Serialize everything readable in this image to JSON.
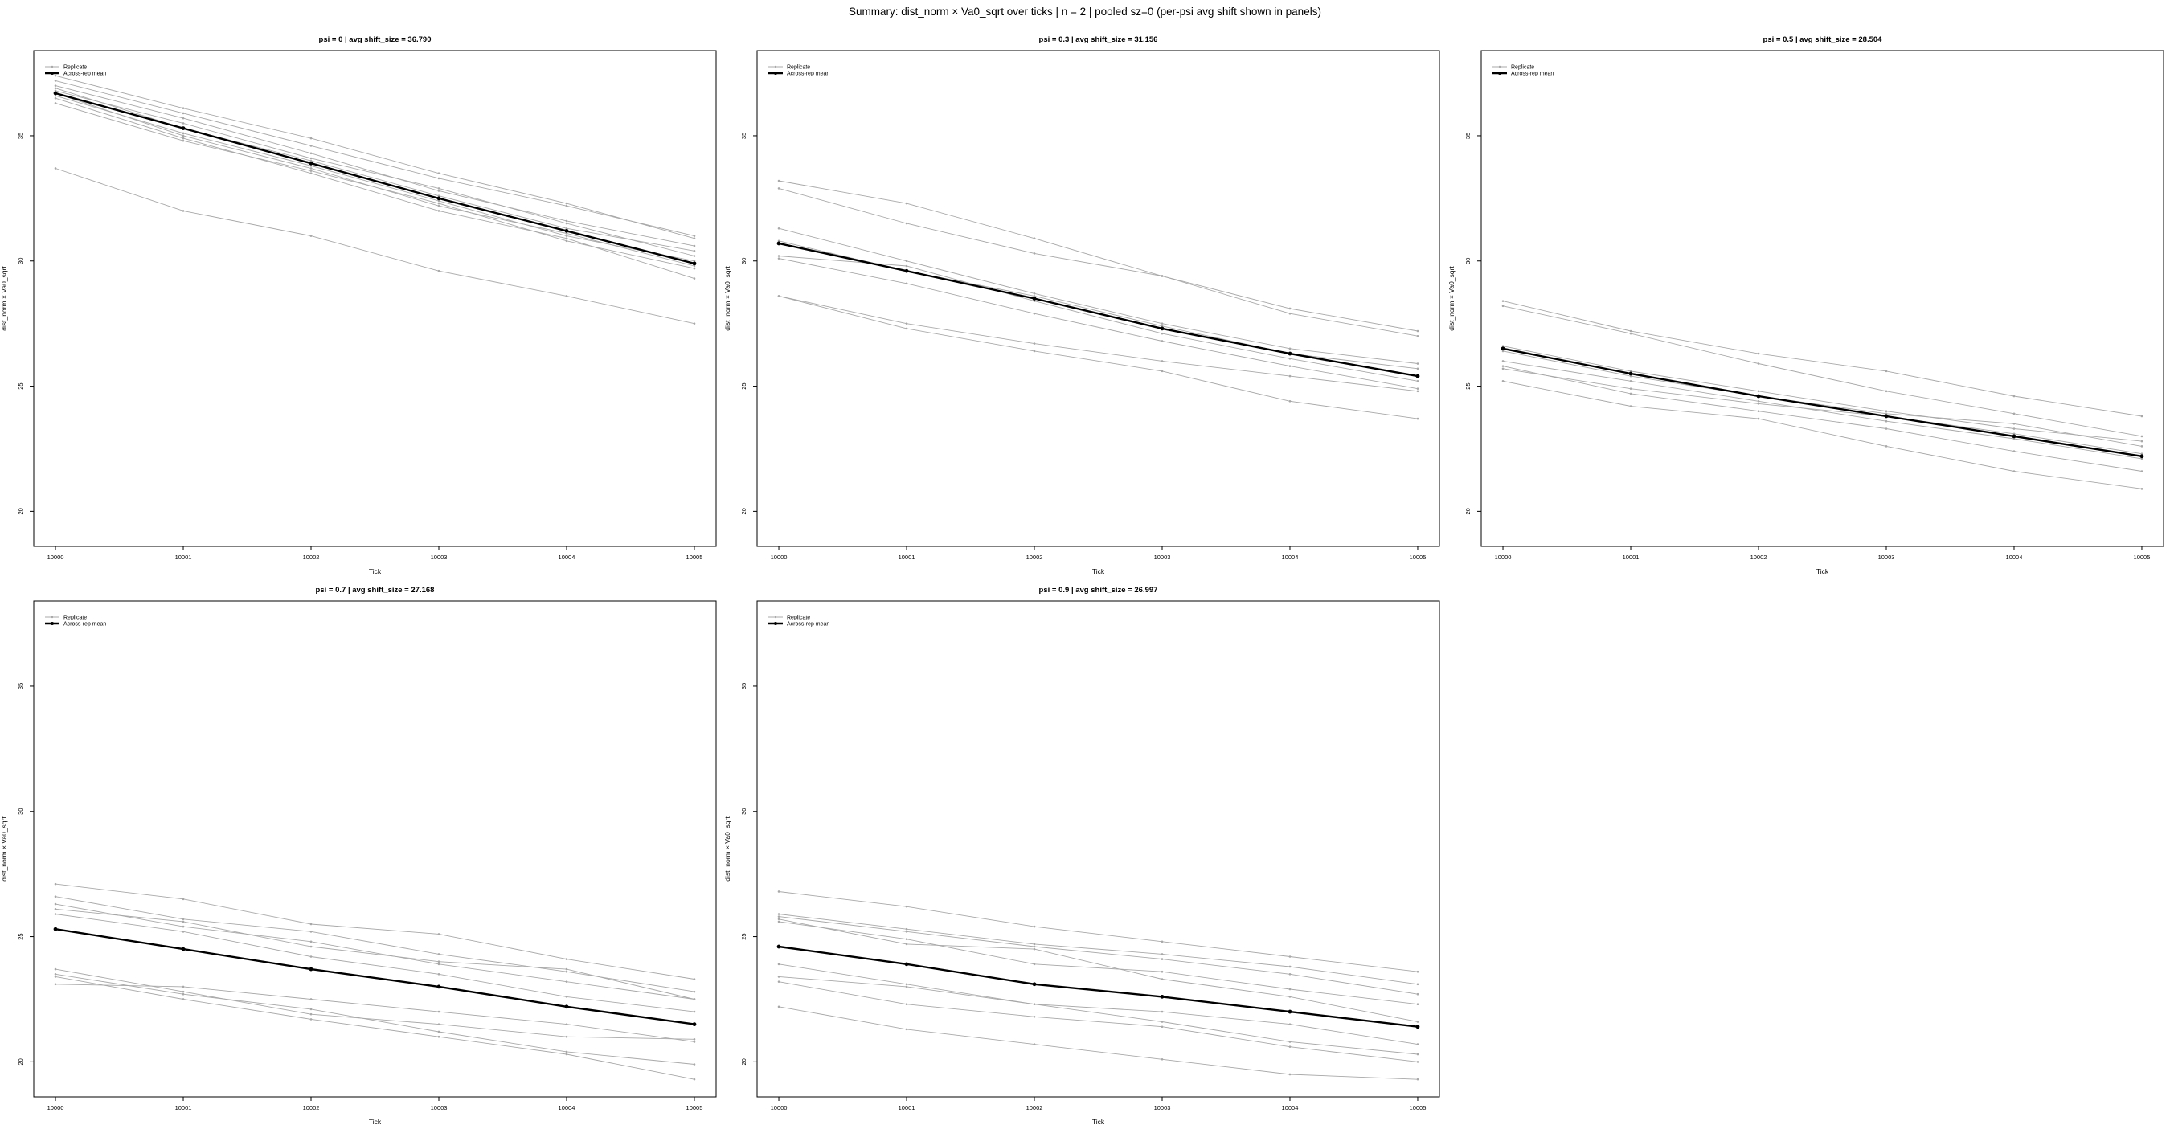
{
  "figure_title": "Summary: dist_norm × Va0_sqrt over ticks | n = 2 | pooled sz=0 (per-psi avg shift shown in panels)",
  "chart_data": [
    {
      "type": "line",
      "title": "psi = 0 | avg shift_size = 36.790",
      "xlabel": "Tick",
      "ylabel": "dist_norm × Va0_sqrt",
      "x": [
        10000,
        10001,
        10002,
        10003,
        10004,
        10005
      ],
      "xlim": [
        9999.83,
        10005.17
      ],
      "ylim": [
        18.6,
        38.4
      ],
      "yticks": [
        20,
        25,
        30,
        35
      ],
      "grid": false,
      "legend": {
        "placement": "top-left",
        "entries": [
          "Replicate",
          "Across-rep mean"
        ]
      },
      "series": [
        {
          "name": "Replicate",
          "values": [
            37.4,
            36.1,
            34.9,
            33.5,
            32.3,
            30.9
          ]
        },
        {
          "name": "Replicate",
          "values": [
            37.2,
            35.9,
            34.6,
            33.3,
            32.2,
            31.0
          ]
        },
        {
          "name": "Replicate",
          "values": [
            37.0,
            35.7,
            34.3,
            32.8,
            31.6,
            30.6
          ]
        },
        {
          "name": "Replicate",
          "values": [
            36.9,
            35.3,
            34.0,
            32.6,
            31.3,
            30.4
          ]
        },
        {
          "name": "Replicate",
          "values": [
            36.8,
            35.5,
            34.1,
            32.9,
            31.5,
            30.2
          ]
        },
        {
          "name": "Replicate",
          "values": [
            36.6,
            35.1,
            33.8,
            32.4,
            31.0,
            30.0
          ]
        },
        {
          "name": "Replicate",
          "values": [
            36.7,
            35.0,
            33.7,
            32.2,
            31.1,
            29.8
          ]
        },
        {
          "name": "Replicate",
          "values": [
            36.3,
            34.8,
            33.6,
            32.3,
            30.8,
            29.7
          ]
        },
        {
          "name": "Replicate",
          "values": [
            36.5,
            34.9,
            33.5,
            32.0,
            30.9,
            29.3
          ]
        },
        {
          "name": "Replicate",
          "values": [
            33.7,
            32.0,
            31.0,
            29.6,
            28.6,
            27.5
          ]
        },
        {
          "name": "Across-rep mean",
          "values": [
            36.7,
            35.3,
            33.9,
            32.5,
            31.2,
            29.9
          ]
        }
      ]
    },
    {
      "type": "line",
      "title": "psi = 0.3 | avg shift_size = 31.156",
      "xlabel": "Tick",
      "ylabel": "dist_norm × Va0_sqrt",
      "x": [
        10000,
        10001,
        10002,
        10003,
        10004,
        10005
      ],
      "xlim": [
        9999.83,
        10005.17
      ],
      "ylim": [
        18.6,
        38.4
      ],
      "yticks": [
        20,
        25,
        30,
        35
      ],
      "grid": false,
      "legend": {
        "placement": "top-left",
        "entries": [
          "Replicate",
          "Across-rep mean"
        ]
      },
      "series": [
        {
          "name": "Replicate",
          "values": [
            33.2,
            32.3,
            30.9,
            29.4,
            28.1,
            27.2
          ]
        },
        {
          "name": "Replicate",
          "values": [
            32.9,
            31.5,
            30.3,
            29.4,
            27.9,
            27.0
          ]
        },
        {
          "name": "Replicate",
          "values": [
            31.3,
            30.0,
            28.7,
            27.5,
            26.5,
            25.9
          ]
        },
        {
          "name": "Replicate",
          "values": [
            30.8,
            29.6,
            28.6,
            27.4,
            26.3,
            25.7
          ]
        },
        {
          "name": "Replicate",
          "values": [
            30.2,
            29.8,
            28.4,
            27.1,
            26.1,
            25.2
          ]
        },
        {
          "name": "Replicate",
          "values": [
            30.1,
            29.1,
            27.9,
            26.8,
            25.8,
            24.9
          ]
        },
        {
          "name": "Replicate",
          "values": [
            28.6,
            27.5,
            26.7,
            26.0,
            25.4,
            24.8
          ]
        },
        {
          "name": "Replicate",
          "values": [
            28.6,
            27.3,
            26.4,
            25.6,
            24.4,
            23.7
          ]
        },
        {
          "name": "Across-rep mean",
          "values": [
            30.7,
            29.6,
            28.5,
            27.3,
            26.3,
            25.4
          ]
        }
      ]
    },
    {
      "type": "line",
      "title": "psi = 0.5 | avg shift_size = 28.504",
      "xlabel": "Tick",
      "ylabel": "dist_norm × Va0_sqrt",
      "x": [
        10000,
        10001,
        10002,
        10003,
        10004,
        10005
      ],
      "xlim": [
        9999.83,
        10005.17
      ],
      "ylim": [
        18.6,
        38.4
      ],
      "yticks": [
        20,
        25,
        30,
        35
      ],
      "grid": false,
      "legend": {
        "placement": "top-left",
        "entries": [
          "Replicate",
          "Across-rep mean"
        ]
      },
      "series": [
        {
          "name": "Replicate",
          "values": [
            28.4,
            27.2,
            26.3,
            25.6,
            24.6,
            23.8
          ]
        },
        {
          "name": "Replicate",
          "values": [
            28.2,
            27.1,
            25.9,
            24.8,
            23.9,
            23.0
          ]
        },
        {
          "name": "Replicate",
          "values": [
            26.6,
            25.6,
            24.8,
            24.0,
            23.3,
            22.8
          ]
        },
        {
          "name": "Replicate",
          "values": [
            26.4,
            25.4,
            24.6,
            23.9,
            23.5,
            22.6
          ]
        },
        {
          "name": "Replicate",
          "values": [
            26.0,
            25.2,
            24.4,
            23.6,
            22.9,
            22.1
          ]
        },
        {
          "name": "Replicate",
          "values": [
            25.7,
            24.9,
            24.3,
            23.8,
            23.1,
            22.3
          ]
        },
        {
          "name": "Replicate",
          "values": [
            25.8,
            24.7,
            24.0,
            23.3,
            22.4,
            21.6
          ]
        },
        {
          "name": "Replicate",
          "values": [
            25.2,
            24.2,
            23.7,
            22.6,
            21.6,
            20.9
          ]
        },
        {
          "name": "Across-rep mean",
          "values": [
            26.5,
            25.5,
            24.6,
            23.8,
            23.0,
            22.2
          ]
        }
      ]
    },
    {
      "type": "line",
      "title": "psi = 0.7 | avg shift_size = 27.168",
      "xlabel": "Tick",
      "ylabel": "dist_norm × Va0_sqrt",
      "x": [
        10000,
        10001,
        10002,
        10003,
        10004,
        10005
      ],
      "xlim": [
        9999.83,
        10005.17
      ],
      "ylim": [
        18.6,
        38.4
      ],
      "yticks": [
        20,
        25,
        30,
        35
      ],
      "grid": false,
      "legend": {
        "placement": "top-left",
        "entries": [
          "Replicate",
          "Across-rep mean"
        ]
      },
      "series": [
        {
          "name": "Replicate",
          "values": [
            27.1,
            26.5,
            25.5,
            25.1,
            24.1,
            23.3
          ]
        },
        {
          "name": "Replicate",
          "values": [
            26.6,
            25.7,
            25.2,
            24.3,
            23.6,
            22.8
          ]
        },
        {
          "name": "Replicate",
          "values": [
            26.3,
            25.4,
            24.8,
            23.9,
            23.2,
            22.5
          ]
        },
        {
          "name": "Replicate",
          "values": [
            26.1,
            25.6,
            24.6,
            24.0,
            23.7,
            22.5
          ]
        },
        {
          "name": "Replicate",
          "values": [
            25.9,
            25.2,
            24.2,
            23.5,
            22.6,
            22.0
          ]
        },
        {
          "name": "Replicate",
          "values": [
            23.7,
            22.8,
            21.9,
            21.5,
            21.0,
            20.9
          ]
        },
        {
          "name": "Replicate",
          "values": [
            23.5,
            22.7,
            22.1,
            21.2,
            20.4,
            19.9
          ]
        },
        {
          "name": "Replicate",
          "values": [
            23.4,
            22.5,
            21.7,
            21.0,
            20.3,
            19.3
          ]
        },
        {
          "name": "Replicate",
          "values": [
            23.1,
            23.0,
            22.5,
            22.0,
            21.5,
            20.8
          ]
        },
        {
          "name": "Across-rep mean",
          "values": [
            25.3,
            24.5,
            23.7,
            23.0,
            22.2,
            21.5
          ]
        }
      ]
    },
    {
      "type": "line",
      "title": "psi = 0.9 | avg shift_size = 26.997",
      "xlabel": "Tick",
      "ylabel": "dist_norm × Va0_sqrt",
      "x": [
        10000,
        10001,
        10002,
        10003,
        10004,
        10005
      ],
      "xlim": [
        9999.83,
        10005.17
      ],
      "ylim": [
        18.6,
        38.4
      ],
      "yticks": [
        20,
        25,
        30,
        35
      ],
      "grid": false,
      "legend": {
        "placement": "top-left",
        "entries": [
          "Replicate",
          "Across-rep mean"
        ]
      },
      "series": [
        {
          "name": "Replicate",
          "values": [
            26.8,
            26.2,
            25.4,
            24.8,
            24.2,
            23.6
          ]
        },
        {
          "name": "Replicate",
          "values": [
            25.9,
            25.3,
            24.7,
            24.3,
            23.8,
            23.1
          ]
        },
        {
          "name": "Replicate",
          "values": [
            25.8,
            25.2,
            24.6,
            24.1,
            23.5,
            22.7
          ]
        },
        {
          "name": "Replicate",
          "values": [
            25.6,
            24.9,
            23.9,
            23.6,
            22.9,
            22.3
          ]
        },
        {
          "name": "Replicate",
          "values": [
            25.7,
            24.7,
            24.5,
            23.3,
            22.6,
            21.6
          ]
        },
        {
          "name": "Replicate",
          "values": [
            23.9,
            23.1,
            22.3,
            22.0,
            21.5,
            20.7
          ]
        },
        {
          "name": "Replicate",
          "values": [
            23.4,
            23.0,
            22.3,
            21.6,
            20.8,
            20.3
          ]
        },
        {
          "name": "Replicate",
          "values": [
            23.2,
            22.3,
            21.8,
            21.4,
            20.6,
            20.0
          ]
        },
        {
          "name": "Replicate",
          "values": [
            22.2,
            21.3,
            20.7,
            20.1,
            19.5,
            19.3
          ]
        },
        {
          "name": "Across-rep mean",
          "values": [
            24.6,
            23.9,
            23.1,
            22.6,
            22.0,
            21.4
          ]
        }
      ]
    }
  ]
}
